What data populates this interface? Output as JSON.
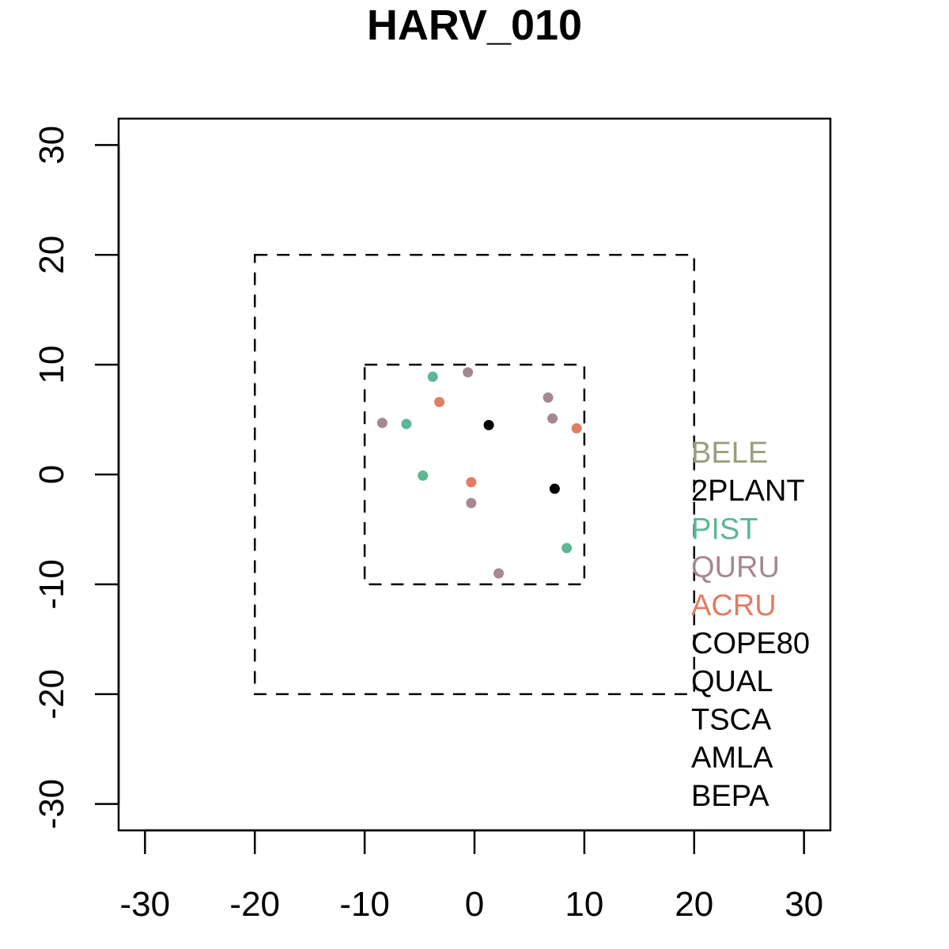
{
  "chart_data": {
    "type": "scatter",
    "title": "HARV_010",
    "xlabel": "",
    "ylabel": "",
    "xlim": [
      -32.4,
      32.4
    ],
    "ylim": [
      -32.4,
      32.4
    ],
    "x_ticks": [
      -30,
      -20,
      -10,
      0,
      10,
      20,
      30
    ],
    "y_ticks": [
      -30,
      -20,
      -10,
      0,
      10,
      20,
      30
    ],
    "grid": false,
    "plot_boundaries": [
      {
        "xmin": -20,
        "xmax": 20,
        "ymin": -20,
        "ymax": 20
      },
      {
        "xmin": -10,
        "xmax": 10,
        "ymin": -10,
        "ymax": 10
      }
    ],
    "legend_position": "right",
    "series": [
      {
        "name": "BELE",
        "color": "#9a9e7c",
        "points": []
      },
      {
        "name": "2PLANT",
        "color": "#000000",
        "points": [
          [
            1.3,
            4.5
          ],
          [
            7.3,
            -1.3
          ]
        ]
      },
      {
        "name": "PIST",
        "color": "#5bb794",
        "points": [
          [
            -3.8,
            8.9
          ],
          [
            -6.2,
            4.6
          ],
          [
            -4.7,
            -0.1
          ],
          [
            8.4,
            -6.7
          ]
        ]
      },
      {
        "name": "QURU",
        "color": "#a68793",
        "points": [
          [
            -0.6,
            9.3
          ],
          [
            6.7,
            7.0
          ],
          [
            7.1,
            5.1
          ],
          [
            -8.4,
            4.7
          ],
          [
            -0.3,
            -2.6
          ],
          [
            2.2,
            -9.0
          ]
        ]
      },
      {
        "name": "ACRU",
        "color": "#e07d63",
        "points": [
          [
            -3.2,
            6.6
          ],
          [
            9.3,
            4.2
          ],
          [
            -0.3,
            -0.7
          ]
        ]
      },
      {
        "name": "COPE80",
        "color": "#000000",
        "points": []
      },
      {
        "name": "QUAL",
        "color": "#000000",
        "points": []
      },
      {
        "name": "TSCA",
        "color": "#000000",
        "points": []
      },
      {
        "name": "AMLA",
        "color": "#000000",
        "points": []
      },
      {
        "name": "BEPA",
        "color": "#000000",
        "points": []
      }
    ]
  }
}
